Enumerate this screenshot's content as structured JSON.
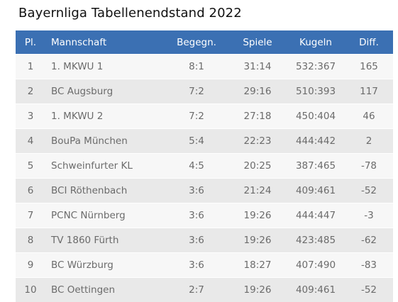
{
  "title": "Bayernliga Tabellenendstand 2022",
  "table": {
    "headers": {
      "pl": "Pl.",
      "mannschaft": "Mannschaft",
      "begegn": "Begegn.",
      "spiele": "Spiele",
      "kugeln": "Kugeln",
      "diff": "Diff."
    },
    "rows": [
      {
        "pl": "1",
        "mannschaft": "1. MKWU 1",
        "begegn": "8:1",
        "spiele": "31:14",
        "kugeln": "532:367",
        "diff": "165"
      },
      {
        "pl": "2",
        "mannschaft": "BC Augsburg",
        "begegn": "7:2",
        "spiele": "29:16",
        "kugeln": "510:393",
        "diff": "117"
      },
      {
        "pl": "3",
        "mannschaft": "1. MKWU 2",
        "begegn": "7:2",
        "spiele": "27:18",
        "kugeln": "450:404",
        "diff": "46"
      },
      {
        "pl": "4",
        "mannschaft": "BouPa München",
        "begegn": "5:4",
        "spiele": "22:23",
        "kugeln": "444:442",
        "diff": "2"
      },
      {
        "pl": "5",
        "mannschaft": "Schweinfurter KL",
        "begegn": "4:5",
        "spiele": "20:25",
        "kugeln": "387:465",
        "diff": "-78"
      },
      {
        "pl": "6",
        "mannschaft": "BCI Röthenbach",
        "begegn": "3:6",
        "spiele": "21:24",
        "kugeln": "409:461",
        "diff": "-52"
      },
      {
        "pl": "7",
        "mannschaft": "PCNC Nürnberg",
        "begegn": "3:6",
        "spiele": "19:26",
        "kugeln": "444:447",
        "diff": "-3"
      },
      {
        "pl": "8",
        "mannschaft": "TV 1860 Fürth",
        "begegn": "3:6",
        "spiele": "19:26",
        "kugeln": "423:485",
        "diff": "-62"
      },
      {
        "pl": "9",
        "mannschaft": "BC Würzburg",
        "begegn": "3:6",
        "spiele": "18:27",
        "kugeln": "407:490",
        "diff": "-83"
      },
      {
        "pl": "10",
        "mannschaft": "BC Oettingen",
        "begegn": "2:7",
        "spiele": "19:26",
        "kugeln": "409:461",
        "diff": "-52"
      }
    ]
  },
  "colors": {
    "header_bg": "#3b70b3",
    "header_text": "#ffffff",
    "row_odd": "#f7f7f7",
    "row_even": "#e9e9e9",
    "cell_text": "#6b6b6b"
  }
}
